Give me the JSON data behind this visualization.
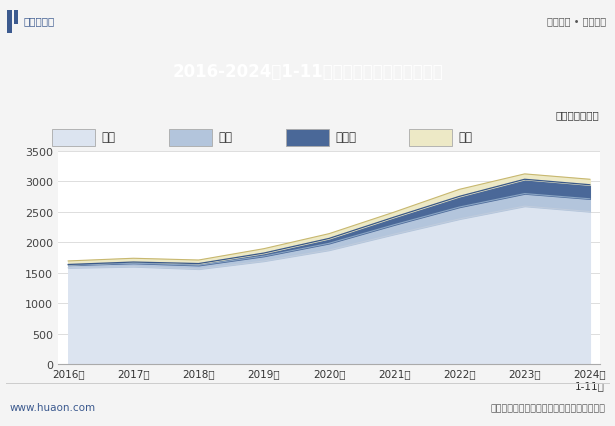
{
  "title": "2016-2024年1-11月陕西省各发电类型发电量",
  "unit_label": "单位：亿千瓦时",
  "years": [
    "2016年",
    "2017年",
    "2018年",
    "2019年",
    "2020年",
    "2021年",
    "2022年",
    "2023年",
    "2024年\n1-11月"
  ],
  "series": {
    "火力": [
      1580,
      1600,
      1560,
      1690,
      1870,
      2130,
      2380,
      2590,
      2500
    ],
    "风力": [
      45,
      55,
      60,
      80,
      110,
      155,
      195,
      205,
      210
    ],
    "太阳能": [
      8,
      18,
      28,
      50,
      80,
      125,
      175,
      235,
      230
    ],
    "水力": [
      58,
      62,
      58,
      72,
      78,
      82,
      115,
      88,
      90
    ]
  },
  "colors": {
    "火力": "#dce4f0",
    "风力": "#b3c5dc",
    "太阳能": "#4a6898",
    "水力": "#ede9c6"
  },
  "line_colors": {
    "火力": "#c0ccdd",
    "风力": "#8aa5c4",
    "太阳能": "#3a5888",
    "水力": "#c8b870"
  },
  "ylim": [
    0,
    3500
  ],
  "yticks": [
    0,
    500,
    1000,
    1500,
    2000,
    2500,
    3000,
    3500
  ],
  "header_bg": "#3c5a8f",
  "header_text": "#ffffff",
  "page_bg": "#f4f4f4",
  "chart_bg": "#ffffff",
  "grid_color": "#d8d8d8",
  "source_text": "数据来源：国家统计局，华经产业研究院整理",
  "logo_text": "华经情报网",
  "slogan_text": "专业严谨 • 客观科学",
  "footer_url": "www.huaon.com",
  "legend_items": [
    "火力",
    "风力",
    "太阳能",
    "水力"
  ]
}
